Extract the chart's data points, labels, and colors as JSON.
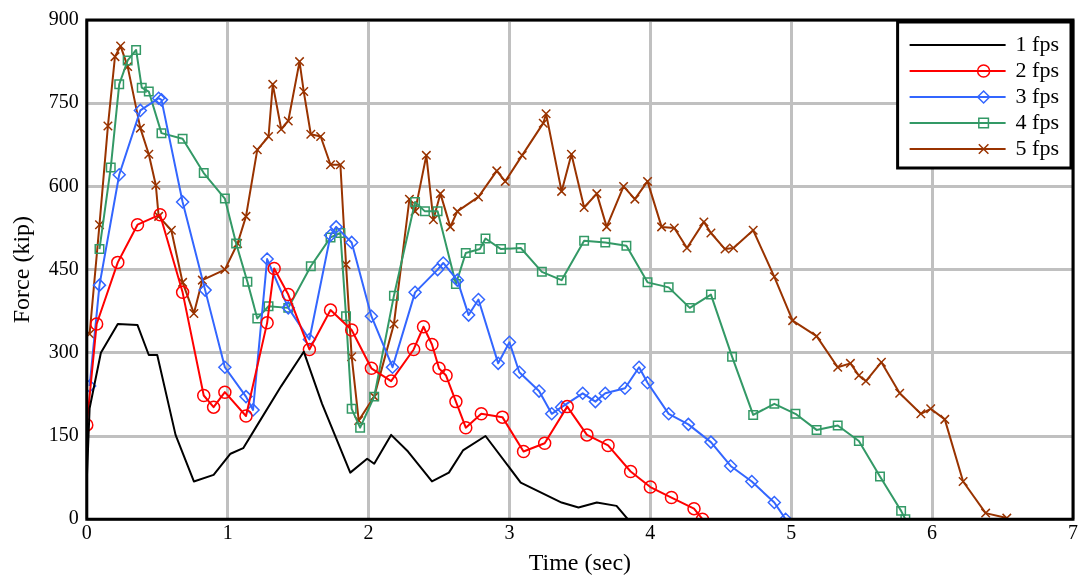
{
  "chart_data": {
    "type": "line",
    "xlabel": "Time (sec)",
    "ylabel": "Force (kip)",
    "xlim": [
      0,
      7
    ],
    "xticks": [
      0,
      1,
      2,
      3,
      4,
      5,
      6,
      7
    ],
    "ylim": [
      0,
      900
    ],
    "yticks": [
      0,
      150,
      300,
      450,
      600,
      750,
      900
    ],
    "grid": true,
    "legend": "top right",
    "line_style": "solid",
    "series": [
      {
        "name": "1 fps",
        "color": "#000000",
        "marker": "none",
        "x": [
          0,
          0.02,
          0.1,
          0.22,
          0.36,
          0.44,
          0.5,
          0.63,
          0.76,
          0.9,
          1.02,
          1.11,
          1.38,
          1.54,
          1.67,
          1.87,
          1.99,
          2.04,
          2.16,
          2.28,
          2.45,
          2.57,
          2.67,
          2.83,
          3.08,
          3.37,
          3.49,
          3.62,
          3.76,
          3.84
        ],
        "values": [
          71,
          200,
          300,
          352,
          350,
          296,
          296,
          152,
          68,
          80,
          118,
          128,
          240,
          302,
          208,
          84,
          109,
          100,
          152,
          122,
          68,
          84,
          124,
          150,
          66,
          30,
          21,
          30,
          24,
          0
        ]
      },
      {
        "name": "2 fps",
        "color": "#ff0000",
        "marker": "circle",
        "x": [
          0,
          0.07,
          0.22,
          0.36,
          0.52,
          0.68,
          0.83,
          0.9,
          0.98,
          1.13,
          1.28,
          1.33,
          1.43,
          1.58,
          1.73,
          1.88,
          2.02,
          2.16,
          2.32,
          2.39,
          2.45,
          2.5,
          2.55,
          2.62,
          2.69,
          2.8,
          2.95,
          3.1,
          3.25,
          3.41,
          3.55,
          3.7,
          3.86,
          4.0,
          4.15,
          4.31,
          4.37
        ],
        "values": [
          170,
          352,
          463,
          531,
          549,
          409,
          223,
          202,
          229,
          186,
          354,
          452,
          405,
          306,
          377,
          341,
          272,
          249,
          306,
          347,
          315,
          272,
          259,
          212,
          165,
          190,
          184,
          122,
          137,
          203,
          152,
          133,
          86,
          58,
          39,
          19,
          0
        ]
      },
      {
        "name": "3 fps",
        "color": "#3366ff",
        "marker": "diamond",
        "x": [
          0.02,
          0.09,
          0.23,
          0.38,
          0.51,
          0.53,
          0.68,
          0.84,
          0.98,
          1.13,
          1.18,
          1.28,
          1.43,
          1.58,
          1.73,
          1.77,
          1.88,
          2.02,
          2.17,
          2.33,
          2.49,
          2.53,
          2.63,
          2.71,
          2.78,
          2.92,
          3.0,
          3.07,
          3.21,
          3.3,
          3.37,
          3.52,
          3.61,
          3.68,
          3.82,
          3.92,
          3.98,
          4.13,
          4.27,
          4.43,
          4.57,
          4.72,
          4.88,
          4.96
        ],
        "values": [
          240,
          422,
          621,
          737,
          759,
          756,
          572,
          413,
          274,
          221,
          197,
          469,
          381,
          324,
          512,
          527,
          499,
          366,
          274,
          409,
          450,
          462,
          431,
          368,
          396,
          281,
          319,
          265,
          231,
          190,
          202,
          227,
          212,
          227,
          236,
          274,
          246,
          190,
          171,
          139,
          96,
          68,
          30,
          0
        ]
      },
      {
        "name": "4 fps",
        "color": "#339966",
        "marker": "square",
        "x": [
          0.09,
          0.17,
          0.23,
          0.29,
          0.35,
          0.39,
          0.44,
          0.53,
          0.68,
          0.83,
          0.98,
          1.06,
          1.14,
          1.21,
          1.29,
          1.43,
          1.59,
          1.73,
          1.8,
          1.84,
          1.88,
          1.94,
          2.04,
          2.18,
          2.33,
          2.4,
          2.49,
          2.62,
          2.69,
          2.79,
          2.83,
          2.94,
          3.08,
          3.23,
          3.37,
          3.53,
          3.68,
          3.83,
          3.98,
          4.13,
          4.28,
          4.43,
          4.58,
          4.73,
          4.88,
          5.03,
          5.18,
          5.33,
          5.48,
          5.63,
          5.78,
          5.81
        ],
        "values": [
          487,
          634,
          784,
          827,
          846,
          778,
          771,
          696,
          686,
          624,
          578,
          497,
          428,
          362,
          384,
          381,
          456,
          508,
          516,
          366,
          199,
          165,
          221,
          403,
          572,
          555,
          555,
          424,
          480,
          487,
          506,
          487,
          489,
          446,
          431,
          502,
          499,
          493,
          427,
          418,
          381,
          405,
          293,
          188,
          208,
          190,
          161,
          169,
          141,
          77,
          15,
          0
        ]
      },
      {
        "name": "5 fps",
        "color": "#993300",
        "marker": "cross",
        "x": [
          0.02,
          0.09,
          0.15,
          0.2,
          0.24,
          0.29,
          0.38,
          0.44,
          0.49,
          0.51,
          0.6,
          0.68,
          0.76,
          0.82,
          0.98,
          1.07,
          1.13,
          1.21,
          1.29,
          1.32,
          1.38,
          1.43,
          1.51,
          1.54,
          1.59,
          1.66,
          1.73,
          1.8,
          1.84,
          1.88,
          1.93,
          2.04,
          2.18,
          2.29,
          2.33,
          2.41,
          2.46,
          2.51,
          2.58,
          2.63,
          2.78,
          2.91,
          2.97,
          3.09,
          3.24,
          3.26,
          3.37,
          3.44,
          3.53,
          3.62,
          3.69,
          3.81,
          3.89,
          3.98,
          4.08,
          4.17,
          4.26,
          4.38,
          4.43,
          4.53,
          4.59,
          4.73,
          4.88,
          5.01,
          5.18,
          5.33,
          5.42,
          5.48,
          5.53,
          5.64,
          5.77,
          5.92,
          5.99,
          6.09,
          6.22,
          6.38,
          6.53
        ],
        "values": [
          334,
          531,
          709,
          834,
          853,
          816,
          705,
          658,
          602,
          546,
          521,
          427,
          371,
          431,
          450,
          497,
          546,
          666,
          690,
          784,
          703,
          718,
          825,
          771,
          694,
          690,
          639,
          639,
          459,
          293,
          178,
          221,
          352,
          577,
          555,
          656,
          540,
          587,
          527,
          555,
          581,
          628,
          609,
          656,
          714,
          731,
          591,
          658,
          562,
          587,
          527,
          600,
          577,
          609,
          527,
          525,
          489,
          536,
          516,
          487,
          489,
          521,
          437,
          358,
          330,
          274,
          281,
          259,
          249,
          283,
          227,
          190,
          199,
          180,
          68,
          11,
          2
        ]
      }
    ]
  }
}
